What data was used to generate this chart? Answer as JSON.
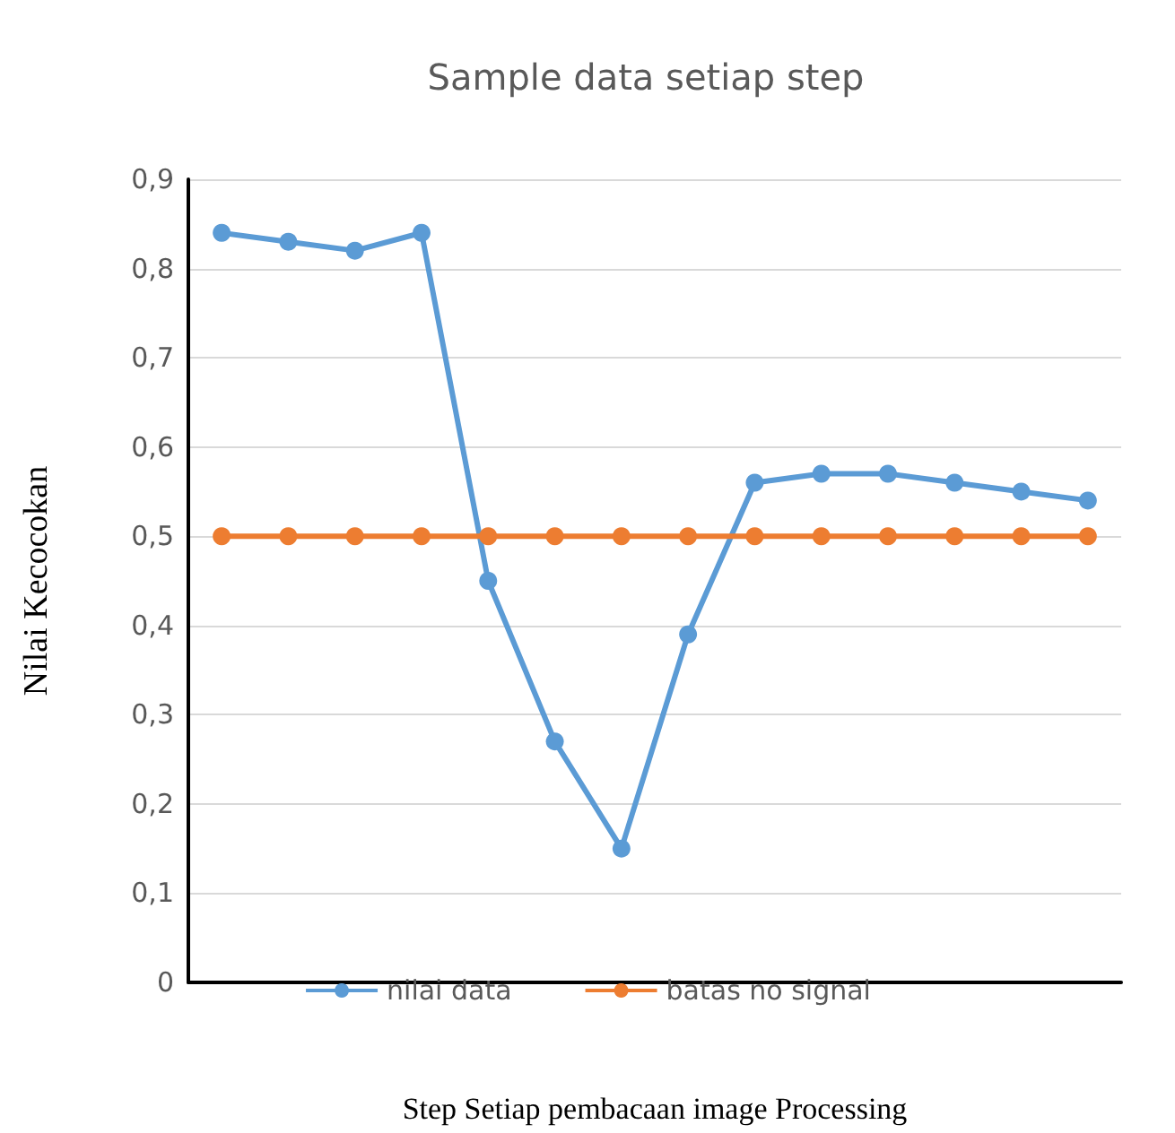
{
  "chart_data": {
    "type": "line",
    "title": "Sample data setiap step",
    "xlabel": "Step Setiap pembacaan image Processing",
    "ylabel": "Nilai Kecocokan",
    "categories": [
      null,
      null,
      null,
      null,
      null,
      null,
      null,
      null,
      null,
      null,
      null,
      null,
      null,
      null
    ],
    "series": [
      {
        "name": "nilai data",
        "color": "#5b9bd5",
        "values": [
          0.84,
          0.83,
          0.82,
          0.84,
          0.45,
          0.27,
          0.15,
          0.39,
          0.56,
          0.57,
          0.57,
          0.56,
          0.55,
          0.54
        ]
      },
      {
        "name": "batas no signal",
        "color": "#ed7d31",
        "values": [
          0.5,
          0.5,
          0.5,
          0.5,
          0.5,
          0.5,
          0.5,
          0.5,
          0.5,
          0.5,
          0.5,
          0.5,
          0.5,
          0.5
        ]
      }
    ],
    "ylim": [
      0,
      0.9
    ],
    "yticks": [
      0,
      {
        "value": 0.1,
        "label": "0,1"
      },
      {
        "value": 0.2,
        "label": "0,2"
      },
      {
        "value": 0.3,
        "label": "0,3"
      },
      {
        "value": 0.4,
        "label": "0,4"
      },
      {
        "value": 0.5,
        "label": "0,5"
      },
      {
        "value": 0.6,
        "label": "0,6"
      },
      {
        "value": 0.7,
        "label": "0,7"
      },
      {
        "value": 0.8,
        "label": "0,8"
      },
      {
        "value": 0.9,
        "label": "0,9"
      }
    ],
    "grid": "y",
    "legend": "bottom",
    "marker": "circle",
    "line_style": "solid"
  }
}
